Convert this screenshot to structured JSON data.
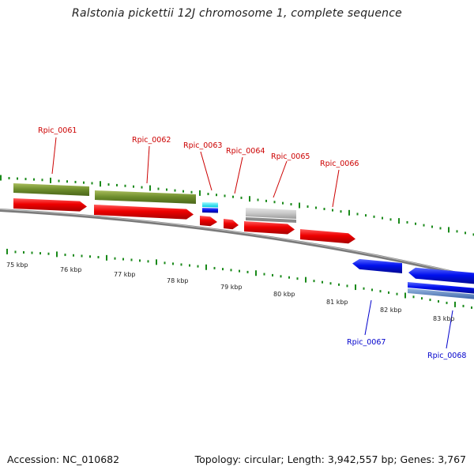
{
  "title": "Ralstonia pickettii 12J chromosome 1, complete sequence",
  "footer": {
    "accession": "Accession: NC_010682",
    "topology": "Topology: circular; Length: 3,942,557 bp; Genes: 3,767"
  },
  "colors": {
    "forward_gene": "#e60000",
    "reverse_gene": "#0010e0",
    "forward_label": "#cc0000",
    "reverse_label": "#0000cc",
    "tick": "#1a8a1a",
    "backbone": "#7a7a7a"
  },
  "scale_labels": [
    "75 kbp",
    "76 kbp",
    "77 kbp",
    "78 kbp",
    "79 kbp",
    "80 kbp",
    "81 kbp",
    "82 kbp",
    "83 kbp"
  ],
  "gene_labels": {
    "forward": [
      "Rpic_0061",
      "Rpic_0062",
      "Rpic_0063",
      "Rpic_0064",
      "Rpic_0065",
      "Rpic_0066"
    ],
    "reverse": [
      "Rpic_0067",
      "Rpic_0068"
    ]
  }
}
